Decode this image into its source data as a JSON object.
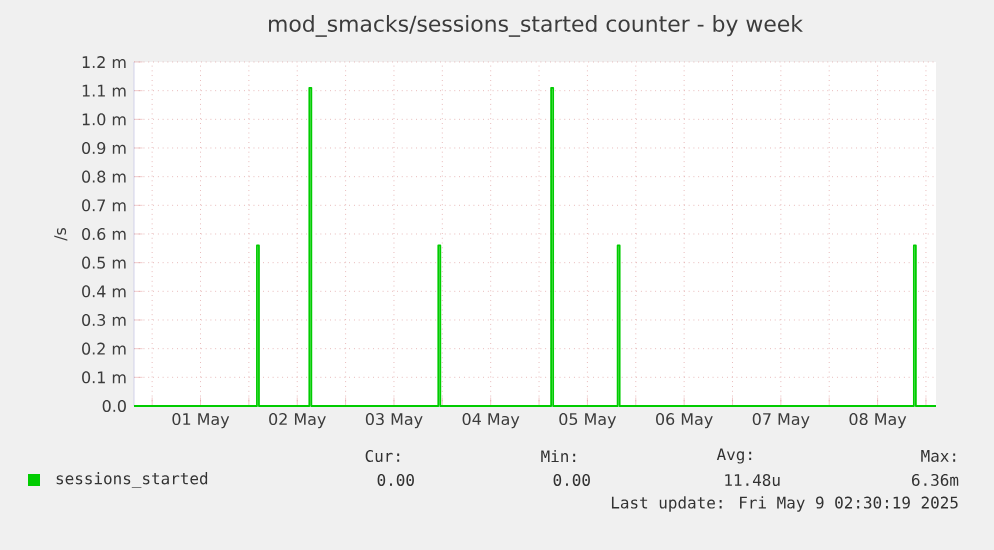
{
  "chart_data": {
    "type": "line",
    "title": "mod_smacks/sessions_started counter - by week",
    "ylabel": "/s",
    "x": [
      "2025-04-30T19:30",
      "2025-05-02T02:00",
      "2025-05-02T02:00",
      "2025-05-02T02:30",
      "2025-05-02T02:30",
      "2025-05-02T15:00",
      "2025-05-02T15:00",
      "2025-05-02T15:30",
      "2025-05-02T15:30",
      "2025-05-03T23:00",
      "2025-05-03T23:00",
      "2025-05-03T23:30",
      "2025-05-03T23:30",
      "2025-05-05T03:00",
      "2025-05-05T03:00",
      "2025-05-05T03:30",
      "2025-05-05T03:30",
      "2025-05-05T19:30",
      "2025-05-05T19:30",
      "2025-05-05T20:00",
      "2025-05-05T20:00",
      "2025-05-08T21:00",
      "2025-05-08T21:00",
      "2025-05-08T21:30",
      "2025-05-08T21:30",
      "2025-05-09T02:30"
    ],
    "series": [
      {
        "name": "sessions_started",
        "color": "#00cc00",
        "values": [
          0,
          0,
          0.56,
          0.56,
          0,
          0,
          1.11,
          1.11,
          0,
          0,
          0.56,
          0.56,
          0,
          0,
          1.11,
          1.11,
          0,
          0,
          0.56,
          0.56,
          0,
          0,
          0.56,
          0.56,
          0,
          0
        ]
      }
    ],
    "xlim": [
      "2025-04-30T19:30",
      "2025-05-09T02:30"
    ],
    "xticks": [
      {
        "value": "2025-05-01T00:00",
        "label": null
      },
      {
        "value": "2025-05-01T12:00",
        "label": "01 May"
      },
      {
        "value": "2025-05-02T00:00",
        "label": null
      },
      {
        "value": "2025-05-02T12:00",
        "label": "02 May"
      },
      {
        "value": "2025-05-03T00:00",
        "label": null
      },
      {
        "value": "2025-05-03T12:00",
        "label": "03 May"
      },
      {
        "value": "2025-05-04T00:00",
        "label": null
      },
      {
        "value": "2025-05-04T12:00",
        "label": "04 May"
      },
      {
        "value": "2025-05-05T00:00",
        "label": null
      },
      {
        "value": "2025-05-05T12:00",
        "label": "05 May"
      },
      {
        "value": "2025-05-06T00:00",
        "label": null
      },
      {
        "value": "2025-05-06T12:00",
        "label": "06 May"
      },
      {
        "value": "2025-05-07T00:00",
        "label": null
      },
      {
        "value": "2025-05-07T12:00",
        "label": "07 May"
      },
      {
        "value": "2025-05-08T00:00",
        "label": null
      },
      {
        "value": "2025-05-08T12:00",
        "label": "08 May"
      },
      {
        "value": "2025-05-09T00:00",
        "label": null
      }
    ],
    "ylim": [
      0,
      1.2
    ],
    "yticks": [
      {
        "value": 0,
        "label": "0.0"
      },
      {
        "value": 0.1,
        "label": "0.1 m"
      },
      {
        "value": 0.2,
        "label": "0.2 m"
      },
      {
        "value": 0.3,
        "label": "0.3 m"
      },
      {
        "value": 0.4,
        "label": "0.4 m"
      },
      {
        "value": 0.5,
        "label": "0.5 m"
      },
      {
        "value": 0.6,
        "label": "0.6 m"
      },
      {
        "value": 0.7,
        "label": "0.7 m"
      },
      {
        "value": 0.8,
        "label": "0.8 m"
      },
      {
        "value": 0.9,
        "label": "0.9 m"
      },
      {
        "value": 1.0,
        "label": "1.0 m"
      },
      {
        "value": 1.1,
        "label": "1.1 m"
      },
      {
        "value": 1.2,
        "label": "1.2 m"
      }
    ],
    "grid": true,
    "legend": "bottom left",
    "marker": "none",
    "line_style": "solid",
    "annotations": [
      "Cur:",
      "Min:",
      "Avg:",
      "Max:",
      "0.00",
      "0.00",
      "11.48u",
      "6.36m",
      "Last update: Fri May  9 02:30:19 2025"
    ]
  }
}
